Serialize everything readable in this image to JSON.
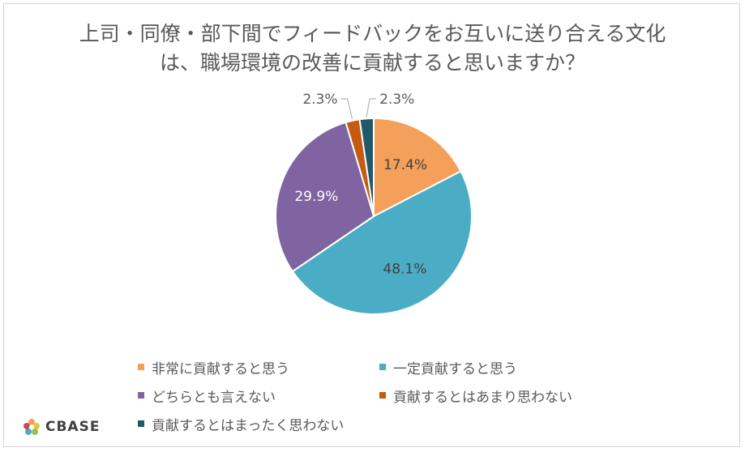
{
  "chart_data": {
    "type": "pie",
    "title_lines": [
      "上司・同僚・部下間でフィードバックをお互いに送り合える文化",
      "は、職場環境の改善に貢献すると思いますか？"
    ],
    "slices": [
      {
        "label": "非常に貢献すると思う",
        "value": 17.4,
        "value_label": "17.4%",
        "color": "#F4A05A"
      },
      {
        "label": "一定貢献すると思う",
        "value": 48.1,
        "value_label": "48.1%",
        "color": "#4BACC6"
      },
      {
        "label": "どちらとも言えない",
        "value": 29.9,
        "value_label": "29.9%",
        "color": "#8064A2"
      },
      {
        "label": "貢献するとはあまり思わない",
        "value": 2.3,
        "value_label": "2.3%",
        "color": "#C55A11"
      },
      {
        "label": "貢献するとはまったく思わない",
        "value": 2.3,
        "value_label": "2.3%",
        "color": "#215968"
      }
    ],
    "legend_position": "bottom"
  },
  "logo": {
    "text": "CBASE"
  }
}
